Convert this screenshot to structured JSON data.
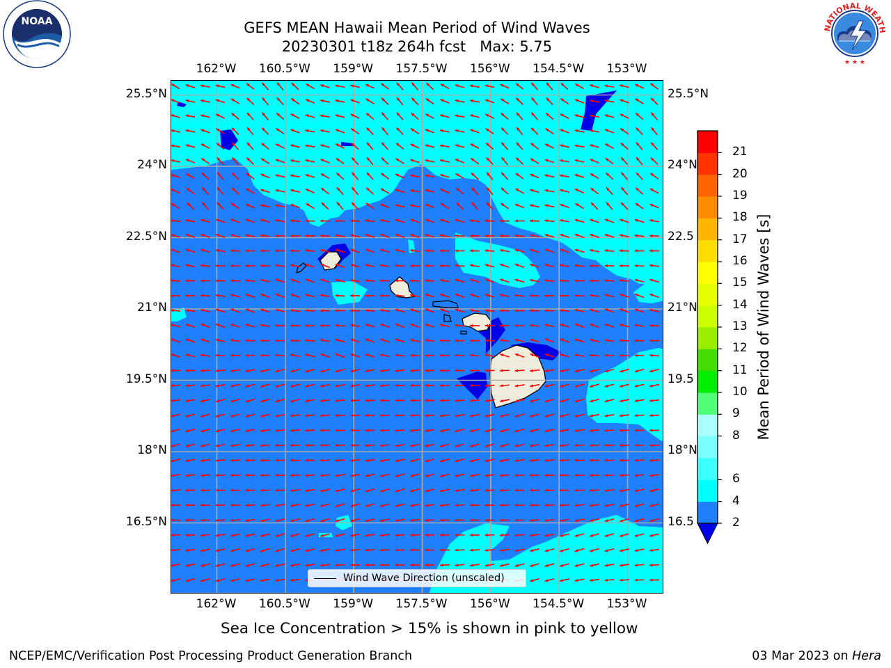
{
  "header": {
    "title_line1": "GEFS MEAN Hawaii Mean Period of Wind Waves",
    "title_line2": "20230301 t18z 264h fcst   Max: 5.75"
  },
  "logos": {
    "noaa_left_text": "NOAA",
    "noaa_ring_text": "NATIONAL OCEANIC AND ATMOSPHERIC ADMINISTRATION · U.S. DEPARTMENT OF COMMERCE",
    "nws_right_text": "NATIONAL WEATHER SERVICE"
  },
  "map": {
    "lon_ticks": [
      "162°W",
      "160.5°W",
      "159°W",
      "157.5°W",
      "156°W",
      "154.5°W",
      "153°W"
    ],
    "lon_values": [
      -162,
      -160.5,
      -159,
      -157.5,
      -156,
      -154.5,
      -153
    ],
    "lat_ticks": [
      "25.5°N",
      "24°N",
      "22.5°N",
      "21°N",
      "19.5°N",
      "18°N",
      "16.5°N"
    ],
    "lat_values": [
      25.5,
      24,
      22.5,
      21,
      19.5,
      18,
      16.5
    ],
    "lat_ticks_right": [
      "25.5°N",
      "24°N",
      "22.5",
      "21°N",
      "19.5",
      "18°N",
      "16.5"
    ],
    "extent": {
      "lon_min": -163.0,
      "lon_max": -152.2,
      "lat_min": 15.0,
      "lat_max": 25.8
    },
    "legend_label": "Wind Wave Direction (unscaled)",
    "colors": {
      "period_2_4": "#1e7fff",
      "period_4_6": "#00ffff",
      "below_2": "#0000e6",
      "land": "#f0ecdb",
      "arrow": "#ff0000",
      "grid": "#aaaaaa"
    }
  },
  "colorbar": {
    "label": "Mean Period of Wind Waves [s]",
    "ticks": [
      "21",
      "20",
      "19",
      "18",
      "17",
      "16",
      "15",
      "14",
      "13",
      "12",
      "11",
      "10",
      "9",
      "8",
      "6",
      "4",
      "2"
    ],
    "levels": [
      2,
      4,
      6,
      7,
      8,
      9,
      10,
      11,
      12,
      13,
      14,
      15,
      16,
      17,
      18,
      19,
      20,
      21
    ],
    "colors": [
      "#1e7fff",
      "#00ffff",
      "#3cffff",
      "#78ffff",
      "#aaffff",
      "#50ff78",
      "#00ee00",
      "#44dd00",
      "#99ee00",
      "#ccff00",
      "#e6ff00",
      "#ffff00",
      "#ffdd00",
      "#ffb400",
      "#ff8c00",
      "#ff6400",
      "#ff3200",
      "#ff0000"
    ],
    "extend_min_color": "#0000e6"
  },
  "footer": {
    "subtitle": "Sea Ice Concentration > 15% is shown in pink to yellow",
    "left": "NCEP/EMC/Verification Post Processing Product Generation Branch",
    "right_prefix": "03 Mar 2023 on ",
    "right_host": "Hera"
  }
}
